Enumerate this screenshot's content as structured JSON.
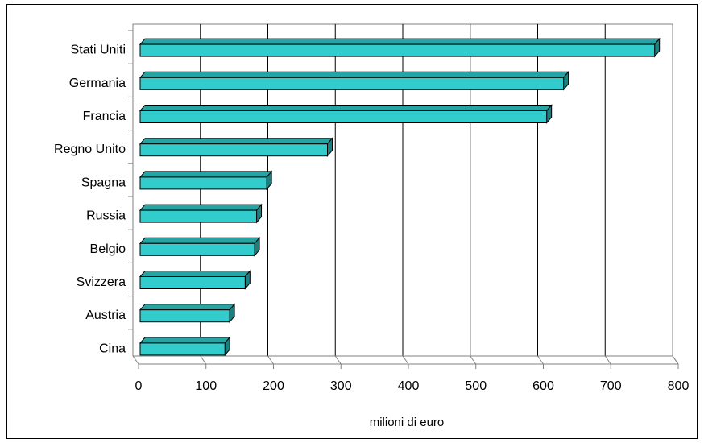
{
  "chart_data": {
    "type": "bar",
    "orientation": "horizontal",
    "categories": [
      "Stati Uniti",
      "Germania",
      "Francia",
      "Regno Unito",
      "Spagna",
      "Russia",
      "Belgio",
      "Svizzera",
      "Austria",
      "Cina"
    ],
    "values": [
      765,
      630,
      605,
      280,
      190,
      175,
      172,
      158,
      135,
      128
    ],
    "title": "",
    "xlabel": "milioni di euro",
    "ylabel": "",
    "xlim": [
      0,
      800
    ],
    "xticks": [
      "0",
      "100",
      "200",
      "300",
      "400",
      "500",
      "600",
      "700",
      "800"
    ],
    "grid": "vertical",
    "legend": "none",
    "colors": {
      "bar_front": "#33CCCC",
      "bar_top": "#26A3A3",
      "bar_side": "#1A8080",
      "grid": "#000000"
    }
  }
}
